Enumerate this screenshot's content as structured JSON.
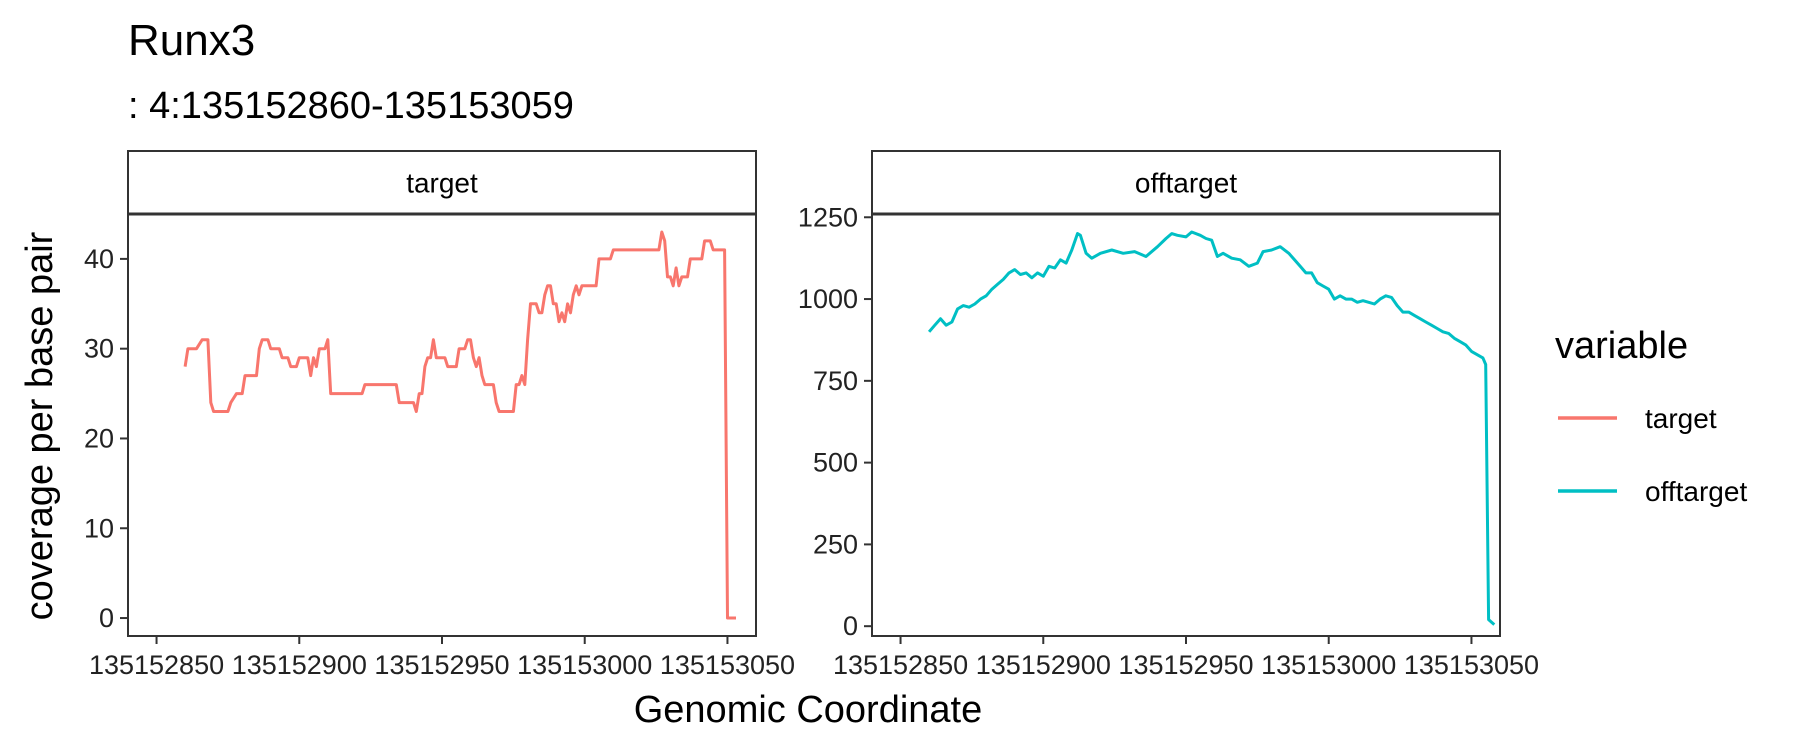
{
  "chart_data": {
    "type": "line",
    "title": "Runx3",
    "subtitle": ": 4:135152860-135153059",
    "xlabel": "Genomic Coordinate",
    "ylabel": "coverage per base pair",
    "legend": {
      "title": "variable",
      "position": "right",
      "entries": [
        {
          "label": "target",
          "color": "#F8766D"
        },
        {
          "label": "offtarget",
          "color": "#00BFC4"
        }
      ]
    },
    "grid": false,
    "panels": [
      {
        "strip": "target",
        "color": "#F8766D",
        "xlim": [
          135152840,
          135153060
        ],
        "ylim": [
          -2,
          45
        ],
        "xticks": [
          135152850,
          135152900,
          135152950,
          135153000,
          135153050
        ],
        "xtick_labels": [
          "135152850",
          "135152900",
          "135152950",
          "135153000",
          "135153050"
        ],
        "yticks": [
          0,
          10,
          20,
          30,
          40
        ],
        "ytick_labels": [
          "0",
          "10",
          "20",
          "30",
          "40"
        ],
        "points": [
          [
            135152860,
            28
          ],
          [
            135152861,
            30
          ],
          [
            135152864,
            30
          ],
          [
            135152866,
            31
          ],
          [
            135152868,
            31
          ],
          [
            135152869,
            24
          ],
          [
            135152870,
            23
          ],
          [
            135152875,
            23
          ],
          [
            135152876,
            24
          ],
          [
            135152878,
            25
          ],
          [
            135152880,
            25
          ],
          [
            135152881,
            27
          ],
          [
            135152885,
            27
          ],
          [
            135152886,
            30
          ],
          [
            135152887,
            31
          ],
          [
            135152889,
            31
          ],
          [
            135152890,
            30
          ],
          [
            135152893,
            30
          ],
          [
            135152894,
            29
          ],
          [
            135152896,
            29
          ],
          [
            135152897,
            28
          ],
          [
            135152899,
            28
          ],
          [
            135152900,
            29
          ],
          [
            135152903,
            29
          ],
          [
            135152904,
            27
          ],
          [
            135152905,
            29
          ],
          [
            135152906,
            28
          ],
          [
            135152907,
            30
          ],
          [
            135152909,
            30
          ],
          [
            135152910,
            31
          ],
          [
            135152911,
            25
          ],
          [
            135152922,
            25
          ],
          [
            135152923,
            26
          ],
          [
            135152934,
            26
          ],
          [
            135152935,
            24
          ],
          [
            135152940,
            24
          ],
          [
            135152941,
            23
          ],
          [
            135152942,
            25
          ],
          [
            135152943,
            25
          ],
          [
            135152944,
            28
          ],
          [
            135152945,
            29
          ],
          [
            135152946,
            29
          ],
          [
            135152947,
            31
          ],
          [
            135152948,
            29
          ],
          [
            135152951,
            29
          ],
          [
            135152952,
            28
          ],
          [
            135152955,
            28
          ],
          [
            135152956,
            30
          ],
          [
            135152958,
            30
          ],
          [
            135152959,
            31
          ],
          [
            135152960,
            31
          ],
          [
            135152961,
            29
          ],
          [
            135152962,
            28
          ],
          [
            135152963,
            29
          ],
          [
            135152964,
            27
          ],
          [
            135152965,
            26
          ],
          [
            135152968,
            26
          ],
          [
            135152969,
            24
          ],
          [
            135152970,
            23
          ],
          [
            135152975,
            23
          ],
          [
            135152976,
            26
          ],
          [
            135152977,
            26
          ],
          [
            135152978,
            27
          ],
          [
            135152979,
            26
          ],
          [
            135152980,
            31
          ],
          [
            135152981,
            35
          ],
          [
            135152983,
            35
          ],
          [
            135152984,
            34
          ],
          [
            135152985,
            34
          ],
          [
            135152986,
            36
          ],
          [
            135152987,
            37
          ],
          [
            135152988,
            37
          ],
          [
            135152989,
            35
          ],
          [
            135152990,
            35
          ],
          [
            135152991,
            33
          ],
          [
            135152992,
            34
          ],
          [
            135152993,
            33
          ],
          [
            135152994,
            35
          ],
          [
            135152995,
            34
          ],
          [
            135152996,
            36
          ],
          [
            135152997,
            37
          ],
          [
            135152998,
            36
          ],
          [
            135152999,
            37
          ],
          [
            135153004,
            37
          ],
          [
            135153005,
            40
          ],
          [
            135153009,
            40
          ],
          [
            135153010,
            41
          ],
          [
            135153026,
            41
          ],
          [
            135153027,
            43
          ],
          [
            135153028,
            42
          ],
          [
            135153029,
            38
          ],
          [
            135153030,
            38
          ],
          [
            135153031,
            37
          ],
          [
            135153032,
            39
          ],
          [
            135153033,
            37
          ],
          [
            135153034,
            38
          ],
          [
            135153036,
            38
          ],
          [
            135153037,
            40
          ],
          [
            135153041,
            40
          ],
          [
            135153042,
            42
          ],
          [
            135153044,
            42
          ],
          [
            135153045,
            41
          ],
          [
            135153048,
            41
          ],
          [
            135153049,
            41
          ],
          [
            135153050,
            0
          ],
          [
            135153053,
            0
          ]
        ]
      },
      {
        "strip": "offtarget",
        "color": "#00BFC4",
        "xlim": [
          135152840,
          135153060
        ],
        "ylim": [
          -30,
          1260
        ],
        "xticks": [
          135152850,
          135152900,
          135152950,
          135153000,
          135153050
        ],
        "xtick_labels": [
          "135152850",
          "135152900",
          "135152950",
          "135153000",
          "135153050"
        ],
        "yticks": [
          0,
          250,
          500,
          750,
          1000,
          1250
        ],
        "ytick_labels": [
          "0",
          "250",
          "500",
          "750",
          "1000",
          "1250"
        ],
        "points": [
          [
            135152860,
            900
          ],
          [
            135152862,
            920
          ],
          [
            135152864,
            940
          ],
          [
            135152866,
            920
          ],
          [
            135152868,
            930
          ],
          [
            135152870,
            970
          ],
          [
            135152872,
            980
          ],
          [
            135152874,
            975
          ],
          [
            135152876,
            985
          ],
          [
            135152878,
            1000
          ],
          [
            135152880,
            1010
          ],
          [
            135152882,
            1030
          ],
          [
            135152884,
            1045
          ],
          [
            135152886,
            1060
          ],
          [
            135152888,
            1080
          ],
          [
            135152890,
            1090
          ],
          [
            135152892,
            1075
          ],
          [
            135152894,
            1080
          ],
          [
            135152896,
            1065
          ],
          [
            135152898,
            1080
          ],
          [
            135152900,
            1070
          ],
          [
            135152902,
            1100
          ],
          [
            135152904,
            1095
          ],
          [
            135152906,
            1120
          ],
          [
            135152908,
            1110
          ],
          [
            135152910,
            1150
          ],
          [
            135152912,
            1200
          ],
          [
            135152913,
            1195
          ],
          [
            135152915,
            1140
          ],
          [
            135152917,
            1125
          ],
          [
            135152920,
            1140
          ],
          [
            135152924,
            1150
          ],
          [
            135152928,
            1140
          ],
          [
            135152932,
            1145
          ],
          [
            135152936,
            1130
          ],
          [
            135152940,
            1160
          ],
          [
            135152943,
            1185
          ],
          [
            135152945,
            1200
          ],
          [
            135152947,
            1195
          ],
          [
            135152950,
            1190
          ],
          [
            135152952,
            1205
          ],
          [
            135152955,
            1195
          ],
          [
            135152957,
            1185
          ],
          [
            135152959,
            1180
          ],
          [
            135152961,
            1130
          ],
          [
            135152963,
            1140
          ],
          [
            135152966,
            1125
          ],
          [
            135152969,
            1120
          ],
          [
            135152972,
            1100
          ],
          [
            135152975,
            1110
          ],
          [
            135152977,
            1145
          ],
          [
            135152980,
            1150
          ],
          [
            135152983,
            1160
          ],
          [
            135152986,
            1140
          ],
          [
            135152988,
            1120
          ],
          [
            135152990,
            1100
          ],
          [
            135152992,
            1080
          ],
          [
            135152994,
            1080
          ],
          [
            135152996,
            1050
          ],
          [
            135152998,
            1040
          ],
          [
            135153000,
            1030
          ],
          [
            135153002,
            1000
          ],
          [
            135153004,
            1010
          ],
          [
            135153006,
            1000
          ],
          [
            135153008,
            1000
          ],
          [
            135153010,
            990
          ],
          [
            135153012,
            995
          ],
          [
            135153014,
            990
          ],
          [
            135153016,
            985
          ],
          [
            135153018,
            1000
          ],
          [
            135153020,
            1010
          ],
          [
            135153022,
            1005
          ],
          [
            135153024,
            980
          ],
          [
            135153026,
            960
          ],
          [
            135153028,
            960
          ],
          [
            135153030,
            950
          ],
          [
            135153032,
            940
          ],
          [
            135153034,
            930
          ],
          [
            135153036,
            920
          ],
          [
            135153038,
            910
          ],
          [
            135153040,
            900
          ],
          [
            135153042,
            895
          ],
          [
            135153044,
            880
          ],
          [
            135153046,
            870
          ],
          [
            135153048,
            860
          ],
          [
            135153050,
            840
          ],
          [
            135153052,
            830
          ],
          [
            135153054,
            820
          ],
          [
            135153055,
            800
          ],
          [
            135153056,
            20
          ],
          [
            135153058,
            5
          ]
        ]
      }
    ]
  }
}
